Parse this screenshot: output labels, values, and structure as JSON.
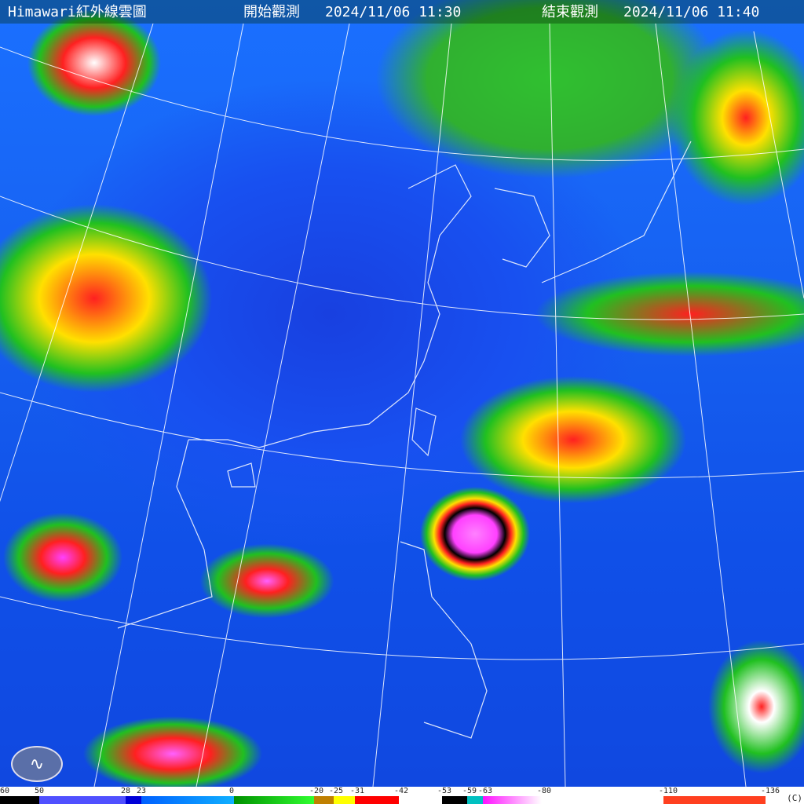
{
  "header": {
    "title": "Himawari紅外線雲圖",
    "start_label": "開始觀測",
    "start_time": "2024/11/06 11:30",
    "end_label": "結束觀測",
    "end_time": "2024/11/06 11:40"
  },
  "logo": {
    "name": "cwa-logo-icon"
  },
  "scale": {
    "unit": "(C)",
    "ticks": [
      "60",
      "50",
      "28",
      "23",
      "0",
      "-20",
      "-25",
      "-31",
      "-42",
      "-53",
      "-59",
      "-63",
      "-80",
      "-110",
      "-136"
    ],
    "segments": [
      {
        "from": 60,
        "to": 50,
        "color": "#000000"
      },
      {
        "from": 50,
        "to": 28,
        "color": "#5050ff"
      },
      {
        "from": 28,
        "to": 23,
        "color": "#0000d8"
      },
      {
        "from": 23,
        "to": 0,
        "color": "#0060ff",
        "color_end": "#10b0ff"
      },
      {
        "from": 0,
        "to": -20,
        "color": "#009000",
        "color_end": "#30ff30"
      },
      {
        "from": -20,
        "to": -25,
        "color": "#c08000"
      },
      {
        "from": -25,
        "to": -31,
        "color": "#ffff00"
      },
      {
        "from": -31,
        "to": -42,
        "color": "#ff0000"
      },
      {
        "from": -42,
        "to": -53,
        "color": "#ffffff"
      },
      {
        "from": -53,
        "to": -59,
        "color": "#000000"
      },
      {
        "from": -59,
        "to": -63,
        "color": "#00c0c0"
      },
      {
        "from": -63,
        "to": -80,
        "color": "#ff10ff",
        "color_end": "#ffffff"
      },
      {
        "from": -80,
        "to": -110,
        "color": "#ffffff"
      },
      {
        "from": -110,
        "to": -136,
        "color": "#ff4020"
      },
      {
        "from": -136,
        "to": -140,
        "color": "#ffffff"
      }
    ]
  }
}
